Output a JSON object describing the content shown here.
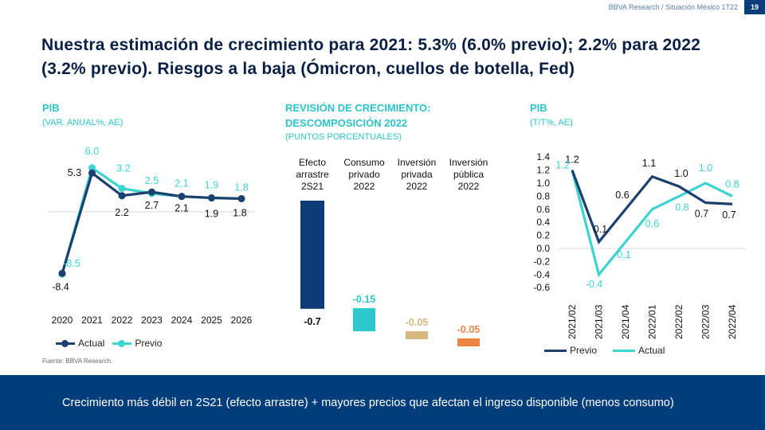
{
  "header": {
    "source": "BBVA Research / Situación México 1T22",
    "page_number": "19"
  },
  "title": "Nuestra estimación de crecimiento para 2021: 5.3% (6.0% previo); 2.2% para 2022 (3.2% previo). Riesgos a la baja (Ómicron, cuellos de botella, Fed)",
  "colors": {
    "navy": "#1b3f6e",
    "teal": "#3cd3d1",
    "bar1": "#0e3b78",
    "bar2": "#2dc9cc",
    "bar3": "#d4b87e",
    "bar4": "#ec8543",
    "band": "#003d7a"
  },
  "panel1": {
    "title": "PIB",
    "subtitle": "(VAR. ANUAL%, AE)"
  },
  "panel2": {
    "title_line1": "REVISIÓN DE CRECIMIENTO:",
    "title_line2": "DESCOMPOSICIÓN 2022",
    "subtitle": "(PUNTOS PORCENTUALES)"
  },
  "panel3": {
    "title": "PIB",
    "subtitle": "(T/T%, AE)"
  },
  "source": "Fuente: BBVA Research.",
  "bottom_text": "Crecimiento más débil en 2S21 (efecto arrastre) + mayores precios que afectan el ingreso disponible (menos consumo)",
  "chart_data": [
    {
      "type": "line",
      "title": "PIB (VAR. ANUAL%, AE)",
      "categories": [
        "2020",
        "2021",
        "2022",
        "2023",
        "2024",
        "2025",
        "2026"
      ],
      "series": [
        {
          "name": "Actual",
          "values": [
            -8.4,
            5.3,
            2.2,
            2.7,
            2.1,
            1.9,
            1.8
          ],
          "labels": [
            "-8.4",
            "5.3",
            "2.2",
            "2.7",
            "2.1",
            "1.9",
            "1.8"
          ]
        },
        {
          "name": "Previo",
          "values": [
            -8.5,
            6.0,
            3.2,
            2.5,
            2.1,
            1.9,
            1.8
          ],
          "labels": [
            "-8.5",
            "6.0",
            "3.2",
            "2.5",
            "2.1",
            "1.9",
            "1.8"
          ]
        }
      ],
      "ylim": [
        -10,
        8
      ],
      "legend": [
        "Actual",
        "Previo"
      ]
    },
    {
      "type": "bar",
      "title": "REVISIÓN DE CRECIMIENTO: DESCOMPOSICIÓN 2022 (PUNTOS PORCENTUALES)",
      "categories": [
        [
          "Efecto",
          "arrastre",
          "2S21"
        ],
        [
          "Consumo",
          "privado",
          "2022"
        ],
        [
          "Inversión",
          "privada",
          "2022"
        ],
        [
          "Inversión",
          "pública",
          "2022"
        ]
      ],
      "values": [
        -0.7,
        -0.15,
        -0.05,
        -0.05
      ],
      "labels": [
        "-0.7",
        "-0.15",
        "-0.05",
        "-0.05"
      ],
      "ylim": [
        -0.75,
        0
      ]
    },
    {
      "type": "line",
      "title": "PIB (T/T%, AE)",
      "categories": [
        "2021/02",
        "2021/03",
        "2021/04",
        "2022/01",
        "2022/02",
        "2022/03",
        "2022/04"
      ],
      "series": [
        {
          "name": "Previo",
          "values": [
            1.2,
            0.1,
            0.6,
            1.1,
            0.95,
            0.7,
            0.68
          ],
          "labels": [
            "1.2",
            "0.1",
            "0.6",
            "1.1",
            "1.0",
            "0.7",
            "0.7"
          ]
        },
        {
          "name": "Actual",
          "values": [
            1.2,
            -0.4,
            0.1,
            0.6,
            0.8,
            1.0,
            0.8
          ],
          "labels": [
            "1.2",
            "-0.4",
            "0.1",
            "0.6",
            "0.8",
            "1.0",
            "0.8"
          ]
        }
      ],
      "yticks": [
        "1.4",
        "1.2",
        "1.0",
        "0.8",
        "0.6",
        "0.4",
        "0.2",
        "0.0",
        "-0.2",
        "-0.4",
        "-0.6"
      ],
      "ylim": [
        -0.6,
        1.4
      ],
      "legend": [
        "Previo",
        "Actual"
      ]
    }
  ]
}
